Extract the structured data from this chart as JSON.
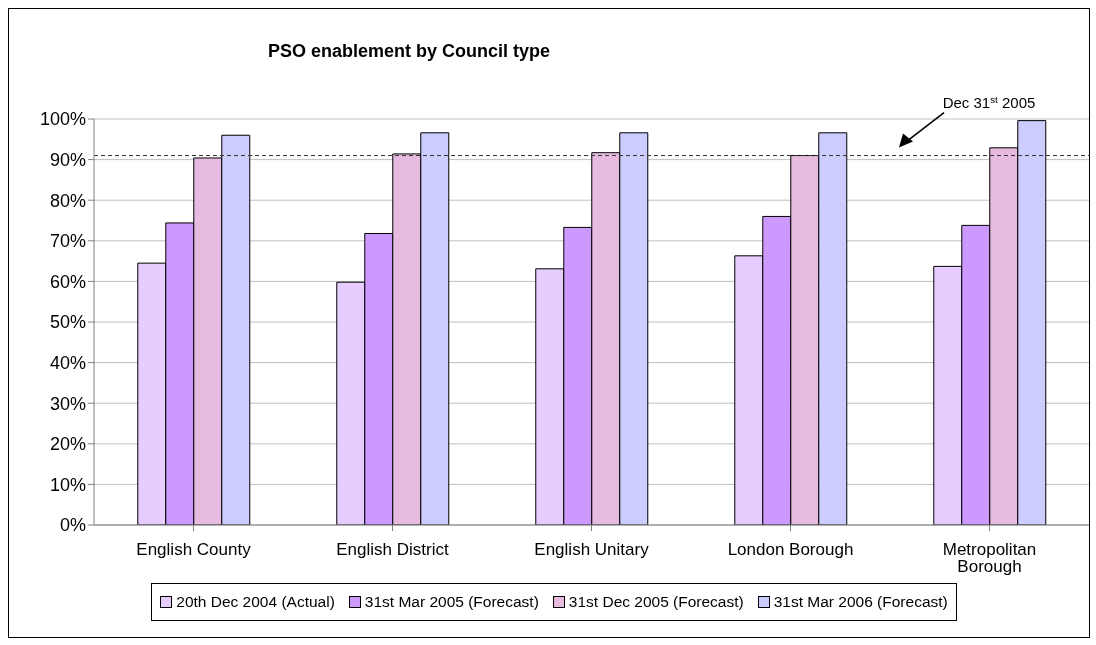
{
  "chart_data": {
    "type": "bar",
    "title": "PSO enablement by Council type",
    "categories": [
      "English County",
      "English District",
      "English Unitary",
      "London Borough",
      "Metropolitan Borough"
    ],
    "series": [
      {
        "name": "20th Dec 2004 (Actual)",
        "color": "#e6ccff",
        "values": [
          64.5,
          59.8,
          63.1,
          66.3,
          63.7
        ]
      },
      {
        "name": "31st Mar 2005 (Forecast)",
        "color": "#cc99ff",
        "values": [
          74.4,
          71.8,
          73.3,
          76.0,
          73.8
        ]
      },
      {
        "name": "31st Dec 2005 (Forecast)",
        "color": "#e6bbdf",
        "values": [
          90.4,
          91.4,
          91.7,
          91.0,
          92.9
        ]
      },
      {
        "name": "31st Mar 2006 (Forecast)",
        "color": "#ccccff",
        "values": [
          96.0,
          96.6,
          96.6,
          96.6,
          99.6
        ]
      }
    ],
    "ylim": [
      0,
      100
    ],
    "yticks": [
      {
        "value": 0,
        "label": "0%"
      },
      {
        "value": 10,
        "label": "10%"
      },
      {
        "value": 20,
        "label": "20%"
      },
      {
        "value": 30,
        "label": "30%"
      },
      {
        "value": 40,
        "label": "40%"
      },
      {
        "value": 50,
        "label": "50%"
      },
      {
        "value": 60,
        "label": "60%"
      },
      {
        "value": 70,
        "label": "70%"
      },
      {
        "value": 80,
        "label": "80%"
      },
      {
        "value": 90,
        "label": "90%"
      },
      {
        "value": 100,
        "label": "100%"
      }
    ],
    "ref_lines": [
      {
        "axis": "y",
        "value": 91,
        "label": "Dec 31$^{st}$ 2005",
        "color": "#333333",
        "line_style": "dashed"
      }
    ],
    "grid": "y",
    "legend": "bottom"
  }
}
